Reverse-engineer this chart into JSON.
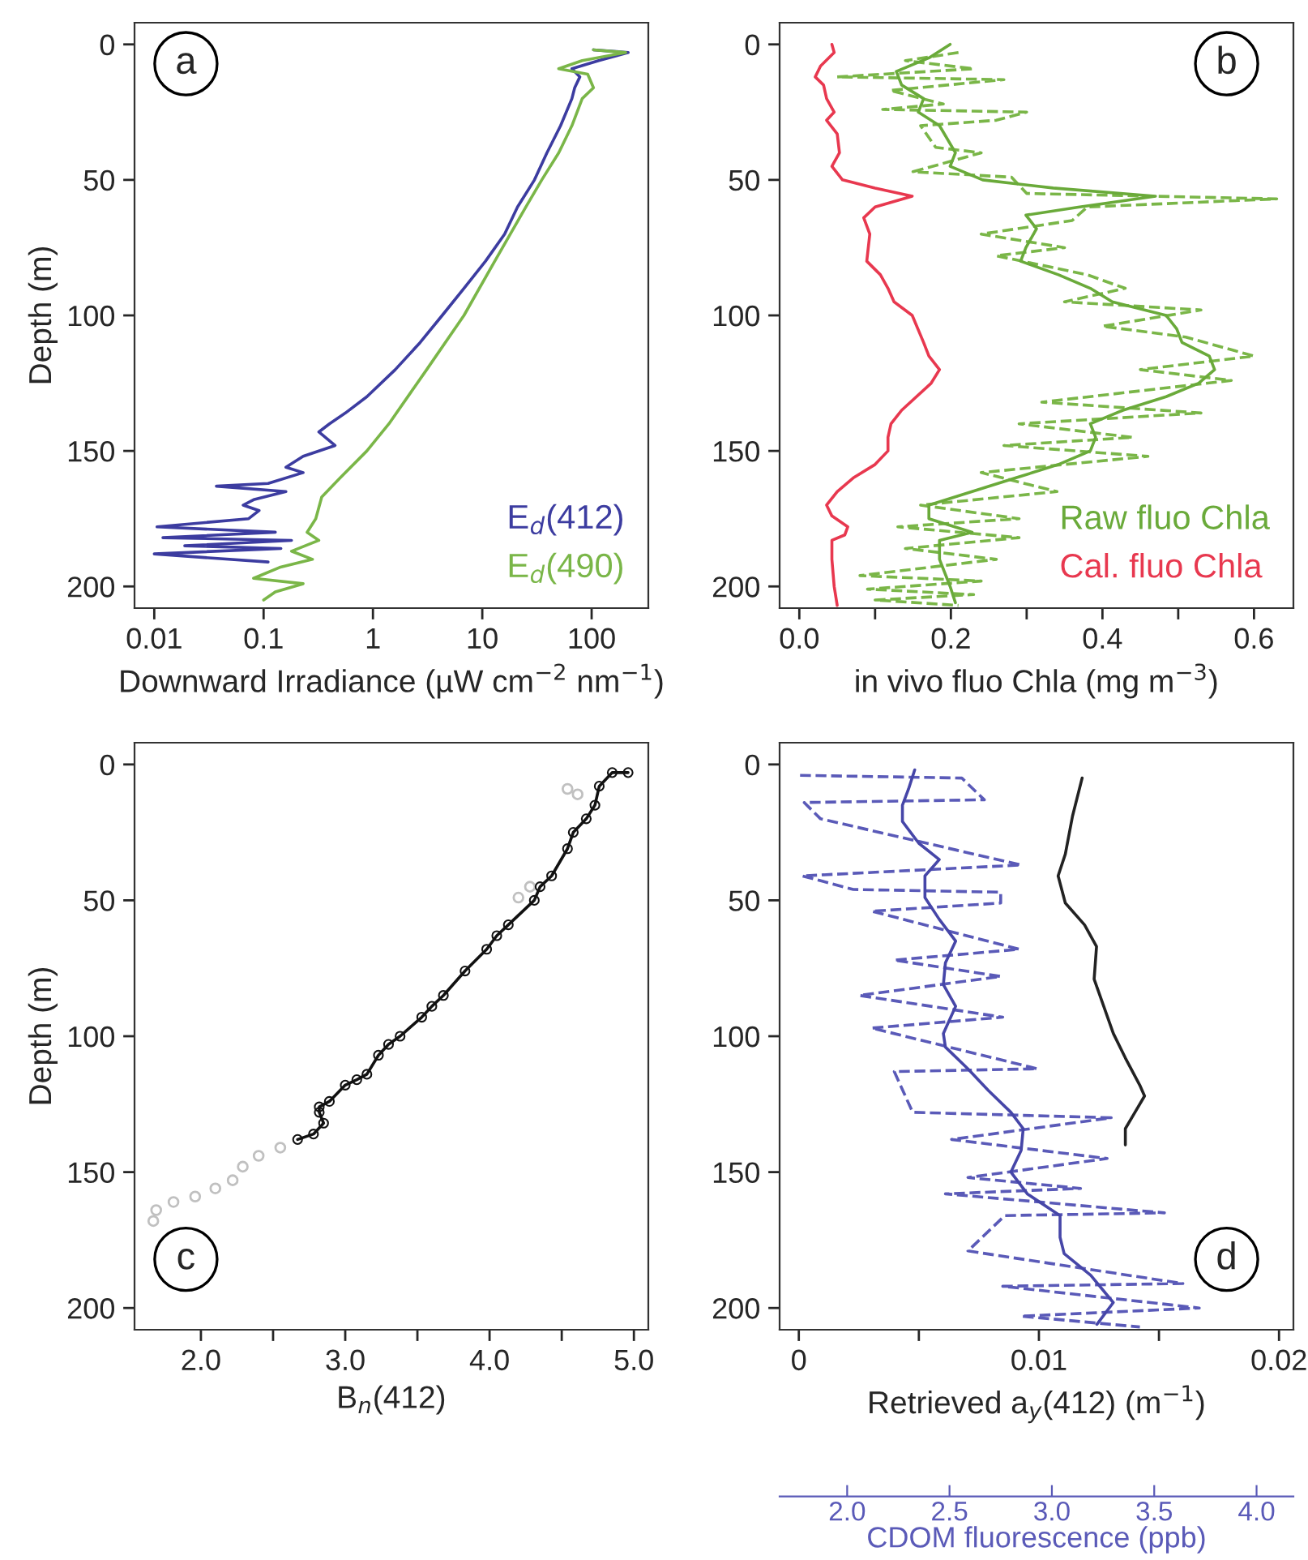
{
  "chart_data": [
    {
      "type": "line",
      "xlabel": "Downward Irradiance (µW cm$^{−2}$ nm$^{−1}$)",
      "ylabel": "Depth (m)",
      "annotations": [
        "a"
      ],
      "log": "x",
      "legend": "bottom right",
      "xlim": [
        0.0066,
        330
      ],
      "xticks": [
        0.01,
        0.1,
        1,
        10,
        100
      ],
      "ylim": [
        208,
        -8
      ],
      "yticks": [
        0,
        50,
        100,
        150,
        200
      ],
      "series": [
        {
          "name": "E$_{d}$(412)",
          "color": "#3c3ca0",
          "x": [
            104,
            216,
            116,
            66,
            78,
            70,
            66,
            52,
            39,
            30,
            21,
            16,
            10.7,
            6.8,
            4.3,
            2.7,
            1.6,
            0.88,
            0.56,
            0.4,
            0.32,
            0.45,
            0.23,
            0.16,
            0.23,
            0.11,
            0.037,
            0.16,
            0.081,
            0.065,
            0.091,
            0.073,
            0.0106,
            0.128,
            0.012,
            0.18,
            0.019,
            0.144,
            0.01,
            0.11
          ],
          "values": [
            2,
            3,
            6,
            9,
            12,
            16,
            20,
            30,
            40,
            50,
            60,
            70,
            80,
            90,
            100,
            110,
            120,
            130,
            136,
            140,
            143,
            148,
            152,
            156,
            158,
            162,
            163,
            165,
            168,
            170,
            172,
            175,
            178,
            180,
            182,
            183,
            185,
            186,
            188,
            191
          ]
        },
        {
          "name": "E$_{d}$(490)",
          "color": "#7ab648",
          "x": [
            104,
            205,
            82,
            50,
            92,
            104,
            82,
            66,
            50,
            35,
            25,
            13,
            6.8,
            3.1,
            1.4,
            0.88,
            0.5,
            0.34,
            0.3,
            0.25,
            0.32,
            0.18,
            0.28,
            0.14,
            0.081,
            0.23,
            0.128,
            0.1
          ],
          "values": [
            2,
            3,
            6,
            9,
            11,
            16,
            20,
            30,
            40,
            50,
            60,
            80,
            100,
            120,
            140,
            150,
            160,
            167,
            175,
            180,
            183,
            187,
            190,
            193,
            197,
            199,
            202,
            205
          ]
        }
      ]
    },
    {
      "type": "line",
      "xlabel": "in vivo fluo Chla (mg m$^{−3}$)",
      "annotations": [
        "b"
      ],
      "legend": "bottom right",
      "xlim": [
        -0.026,
        0.652
      ],
      "xticks": [
        {
          "value": 0,
          "label": "0.0"
        },
        {
          "value": 0.1,
          "label": null
        },
        0.2,
        {
          "value": 0.3,
          "label": null
        },
        0.4,
        {
          "value": 0.5,
          "label": null
        },
        0.6
      ],
      "ylim": [
        208,
        -8
      ],
      "yticks": [
        0,
        50,
        100,
        150,
        200
      ],
      "series": [
        {
          "color": "#7ab648",
          "line_style": "dashed",
          "x": [
            0.21,
            0.14,
            0.23,
            0.05,
            0.27,
            0.12,
            0.19,
            0.11,
            0.3,
            0.26,
            0.16,
            0.18,
            0.24,
            0.15,
            0.28,
            0.3,
            0.63,
            0.38,
            0.36,
            0.24,
            0.35,
            0.26,
            0.38,
            0.43,
            0.35,
            0.53,
            0.4,
            0.51,
            0.6,
            0.45,
            0.57,
            0.32,
            0.53,
            0.29,
            0.44,
            0.27,
            0.46,
            0.24,
            0.34,
            0.16,
            0.29,
            0.13,
            0.29,
            0.14,
            0.26,
            0.08,
            0.24,
            0.09,
            0.23,
            0.1,
            0.21
          ],
          "values": [
            3,
            6,
            9,
            12,
            13,
            17,
            22,
            24,
            25,
            28,
            30,
            38,
            40,
            47,
            49,
            55,
            57,
            60,
            65,
            70,
            75,
            78,
            85,
            90,
            95,
            98,
            104,
            108,
            115,
            120,
            124,
            132,
            136,
            140,
            145,
            148,
            152,
            158,
            165,
            170,
            175,
            178,
            182,
            186,
            190,
            196,
            198,
            201,
            203,
            205,
            207
          ]
        },
        {
          "name": "Raw fluo Chla",
          "color": "#6aaa3a",
          "x": [
            0.199,
            0.171,
            0.128,
            0.135,
            0.164,
            0.157,
            0.185,
            0.206,
            0.199,
            0.242,
            0.335,
            0.47,
            0.37,
            0.299,
            0.313,
            0.299,
            0.292,
            0.342,
            0.384,
            0.413,
            0.484,
            0.498,
            0.505,
            0.541,
            0.548,
            0.527,
            0.484,
            0.427,
            0.384,
            0.391,
            0.384,
            0.342,
            0.285,
            0.228,
            0.171,
            0.171,
            0.228,
            0.185,
            0.185,
            0.199,
            0.206
          ],
          "values": [
            0,
            5,
            10,
            15,
            20,
            25,
            30,
            40,
            45,
            50,
            53,
            56,
            60,
            63,
            68,
            75,
            80,
            85,
            90,
            95,
            100,
            105,
            110,
            115,
            120,
            125,
            130,
            135,
            140,
            145,
            150,
            155,
            160,
            165,
            170,
            175,
            180,
            183,
            190,
            200,
            206
          ]
        },
        {
          "name": "Cal. fluo Chla",
          "color": "#e8384f",
          "x": [
            0.043,
            0.046,
            0.028,
            0.021,
            0.032,
            0.036,
            0.046,
            0.036,
            0.05,
            0.053,
            0.043,
            0.057,
            0.1,
            0.149,
            0.1,
            0.085,
            0.093,
            0.089,
            0.107,
            0.117,
            0.125,
            0.149,
            0.164,
            0.171,
            0.185,
            0.174,
            0.135,
            0.121,
            0.117,
            0.117,
            0.1,
            0.071,
            0.05,
            0.036,
            0.043,
            0.064,
            0.06,
            0.043,
            0.043,
            0.046,
            0.05
          ],
          "values": [
            0,
            3,
            8,
            12,
            15,
            20,
            25,
            28,
            33,
            40,
            45,
            50,
            53,
            56,
            60,
            64,
            70,
            80,
            85,
            90,
            95,
            100,
            110,
            115,
            120,
            125,
            135,
            140,
            145,
            150,
            155,
            160,
            165,
            170,
            174,
            178,
            181,
            183,
            190,
            200,
            207
          ]
        }
      ]
    },
    {
      "type": "scatter",
      "xlabel": "B$_{n}$(412)",
      "ylabel": "Depth (m)",
      "annotations": [
        "c"
      ],
      "marker": "circle",
      "xlim": [
        1.54,
        5.1
      ],
      "xticks": [
        {
          "value": 2,
          "label": "2.0"
        },
        {
          "value": 2.5,
          "label": null
        },
        {
          "value": 3,
          "label": "3.0"
        },
        {
          "value": 3.5,
          "label": null
        },
        {
          "value": 4,
          "label": "4.0"
        },
        {
          "value": 4.5,
          "label": null
        },
        {
          "value": 5,
          "label": "5.0"
        }
      ],
      "ylim": [
        208,
        -8
      ],
      "yticks": [
        0,
        50,
        100,
        150,
        200
      ],
      "series": [
        {
          "color": "#111111",
          "type": "line",
          "x": [
            4.96,
            4.85,
            4.76,
            4.73,
            4.67,
            4.58,
            4.54,
            4.43,
            4.35,
            4.31,
            4.13,
            4.05,
            3.98,
            3.83,
            3.68,
            3.6,
            3.53,
            3.38,
            3.3,
            3.23,
            3.15,
            3.08,
            3.0,
            2.89,
            2.82,
            2.82,
            2.85,
            2.78,
            2.67
          ],
          "values": [
            3,
            3,
            8,
            15,
            20,
            25,
            31,
            41,
            45,
            50,
            59,
            63,
            68,
            76,
            85,
            89,
            93,
            100,
            103,
            107,
            114,
            116,
            118,
            124,
            126,
            128,
            132,
            136,
            138
          ]
        },
        {
          "color": "#c0c0c0",
          "x": [
            4.54,
            4.61,
            4.28,
            4.2,
            2.55,
            2.4,
            2.29,
            2.22,
            2.1,
            1.96,
            1.81,
            1.69,
            1.67
          ],
          "values": [
            9,
            11,
            45,
            49,
            141,
            144,
            148,
            153,
            156,
            159,
            161,
            164,
            168
          ]
        }
      ]
    },
    {
      "type": "line",
      "xlabel": "Retrieved a$_{y}$(412) (m$^{−1}$)",
      "x2label": "CDOM fluorescence (ppb)",
      "annotations": [
        "d"
      ],
      "xlim": [
        -0.0008,
        0.0206
      ],
      "xticks": [
        0,
        {
          "value": 0.005,
          "label": null
        },
        0.01,
        {
          "value": 0.015,
          "label": null
        },
        0.02
      ],
      "x2lim": [
        1.67,
        4.18
      ],
      "x2ticks": [
        {
          "value": 2,
          "label": "2.0"
        },
        2.5,
        {
          "value": 3,
          "label": "3.0"
        },
        3.5,
        {
          "value": 4,
          "label": "4.0"
        }
      ],
      "ylim": [
        208,
        -8
      ],
      "yticks": [
        0,
        50,
        100,
        150,
        200
      ],
      "series": [
        {
          "color": "#5a5ab8",
          "axis": "x2",
          "line_style": "dashed",
          "x": [
            1.77,
            2.56,
            2.67,
            1.79,
            1.87,
            2.85,
            1.78,
            2.03,
            2.75,
            2.75,
            2.12,
            2.84,
            2.23,
            2.75,
            2.06,
            2.76,
            2.12,
            2.93,
            2.23,
            2.32,
            3.29,
            2.51,
            3.27,
            2.59,
            3.14,
            2.48,
            3.55,
            2.77,
            2.59,
            3.64,
            2.76,
            3.72,
            2.85,
            3.43
          ],
          "values": [
            4,
            5,
            13,
            14,
            20,
            37,
            41,
            46,
            47,
            51,
            54,
            68,
            72,
            78,
            85,
            93,
            97,
            112,
            113,
            128,
            130,
            138,
            145,
            152,
            156,
            158,
            165,
            166,
            179,
            191,
            192,
            200,
            203,
            207
          ]
        },
        {
          "color": "#4646a8",
          "axis": "x2",
          "x": [
            2.33,
            2.3,
            2.27,
            2.27,
            2.35,
            2.45,
            2.38,
            2.38,
            2.45,
            2.53,
            2.48,
            2.47,
            2.53,
            2.47,
            2.48,
            2.59,
            2.69,
            2.8,
            2.86,
            2.85,
            2.8,
            2.88,
            3.04,
            3.04,
            3.06,
            3.19,
            3.3,
            3.22
          ],
          "values": [
            2,
            9,
            15,
            21,
            29,
            35,
            41,
            49,
            57,
            65,
            73,
            81,
            89,
            99,
            104,
            112,
            120,
            128,
            134,
            142,
            150,
            158,
            166,
            174,
            180,
            188,
            198,
            206
          ]
        },
        {
          "color": "#222222",
          "x": [
            0.0118,
            0.0114,
            0.0111,
            0.0108,
            0.0111,
            0.0119,
            0.0124,
            0.0123,
            0.0127,
            0.0131,
            0.0136,
            0.0142,
            0.0144,
            0.014,
            0.0136,
            0.0136
          ],
          "values": [
            5,
            19,
            33,
            41,
            51,
            59,
            67,
            79,
            89,
            99,
            108,
            118,
            122,
            128,
            134,
            140
          ]
        }
      ]
    }
  ]
}
